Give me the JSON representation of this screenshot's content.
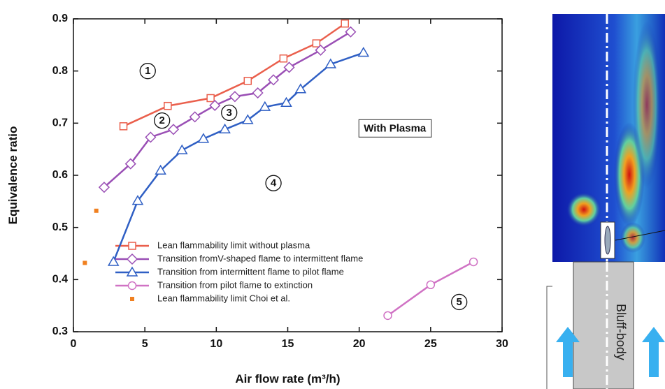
{
  "chart_data": {
    "type": "line",
    "xlabel": "Air flow rate (m³/h)",
    "ylabel": "Equivalence ratio",
    "xlim": [
      0,
      30
    ],
    "ylim": [
      0.3,
      0.9
    ],
    "xticks": [
      0,
      5,
      10,
      15,
      20,
      25,
      30
    ],
    "yticks": [
      0.3,
      0.4,
      0.5,
      0.6,
      0.7,
      0.8,
      0.9
    ],
    "series": [
      {
        "name": "Lean flammability limit without plasma",
        "color": "#ea5f4c",
        "marker": "square",
        "x": [
          3.5,
          6.6,
          9.6,
          12.2,
          14.7,
          17.0,
          19.0
        ],
        "values": [
          0.694,
          0.733,
          0.748,
          0.781,
          0.824,
          0.853,
          0.891
        ]
      },
      {
        "name": "Transition fromV-shaped flame to intermittent flame",
        "color": "#9a4fb5",
        "marker": "diamond",
        "x": [
          2.15,
          4.0,
          5.4,
          7.0,
          8.5,
          9.9,
          11.3,
          12.9,
          14.0,
          15.1,
          17.3,
          19.4
        ],
        "values": [
          0.577,
          0.622,
          0.673,
          0.688,
          0.712,
          0.734,
          0.751,
          0.758,
          0.783,
          0.807,
          0.84,
          0.875
        ]
      },
      {
        "name": "Transition from intermittent flame to pilot flame",
        "color": "#2f5fc4",
        "marker": "triangle",
        "x": [
          2.8,
          4.5,
          6.1,
          7.6,
          9.1,
          10.6,
          12.2,
          13.4,
          14.9,
          15.9,
          18.0,
          20.3
        ],
        "values": [
          0.434,
          0.551,
          0.609,
          0.648,
          0.67,
          0.688,
          0.706,
          0.731,
          0.739,
          0.765,
          0.813,
          0.835
        ]
      },
      {
        "name": "Transition from pilot flame to extinction",
        "color": "#d072c4",
        "marker": "circle",
        "x": [
          22.0,
          25.0,
          28.0
        ],
        "values": [
          0.331,
          0.39,
          0.434
        ]
      },
      {
        "name": "Lean flammability limit Choi et al.",
        "color": "#f08020",
        "marker": "dot",
        "line": false,
        "x": [
          0.8,
          1.6
        ],
        "values": [
          0.432,
          0.532
        ]
      }
    ],
    "annotations": [
      {
        "text": "1",
        "x": 5.2,
        "y": 0.8,
        "circled": true
      },
      {
        "text": "2",
        "x": 6.2,
        "y": 0.705,
        "circled": true
      },
      {
        "text": "3",
        "x": 10.9,
        "y": 0.72,
        "circled": true
      },
      {
        "text": "4",
        "x": 14.0,
        "y": 0.585,
        "circled": true
      },
      {
        "text": "5",
        "x": 27.0,
        "y": 0.357,
        "circled": true
      },
      {
        "text": "With Plasma",
        "x": 22.5,
        "y": 0.69,
        "boxed": true
      }
    ],
    "legend": "lower left"
  },
  "side_figure": {
    "label": "Bluff-body"
  }
}
